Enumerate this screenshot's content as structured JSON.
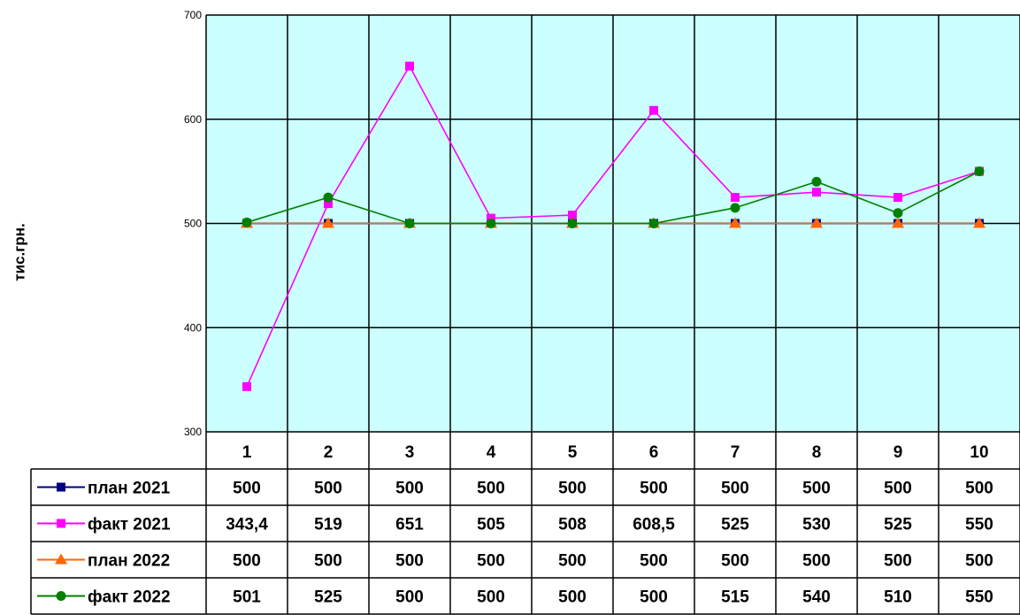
{
  "chart_data": {
    "type": "line",
    "ylabel": "тис.грн.",
    "ylim": [
      300,
      700
    ],
    "yticks": [
      300,
      400,
      500,
      600,
      700
    ],
    "grid": true,
    "legend": "data-table",
    "plot_background": "#CCFFFF",
    "categories": [
      "1",
      "2",
      "3",
      "4",
      "5",
      "6",
      "7",
      "8",
      "9",
      "10"
    ],
    "series": [
      {
        "name": "план 2021",
        "color": "#000080",
        "marker": "square",
        "values": [
          500,
          500,
          500,
          500,
          500,
          500,
          500,
          500,
          500,
          500
        ],
        "labels": [
          "500",
          "500",
          "500",
          "500",
          "500",
          "500",
          "500",
          "500",
          "500",
          "500"
        ]
      },
      {
        "name": "факт 2021",
        "color": "#FF00FF",
        "marker": "square",
        "values": [
          343.4,
          519,
          651,
          505,
          508,
          608.5,
          525,
          530,
          525,
          550
        ],
        "labels": [
          "343,4",
          "519",
          "651",
          "505",
          "508",
          "608,5",
          "525",
          "530",
          "525",
          "550"
        ]
      },
      {
        "name": "план 2022",
        "color": "#FF6600",
        "marker": "triangle",
        "values": [
          500,
          500,
          500,
          500,
          500,
          500,
          500,
          500,
          500,
          500
        ],
        "labels": [
          "500",
          "500",
          "500",
          "500",
          "500",
          "500",
          "500",
          "500",
          "500",
          "500"
        ]
      },
      {
        "name": "факт 2022",
        "color": "#008000",
        "marker": "circle",
        "values": [
          501,
          525,
          500,
          500,
          500,
          500,
          515,
          540,
          510,
          550
        ],
        "labels": [
          "501",
          "525",
          "500",
          "500",
          "500",
          "500",
          "515",
          "540",
          "510",
          "550"
        ]
      }
    ]
  }
}
